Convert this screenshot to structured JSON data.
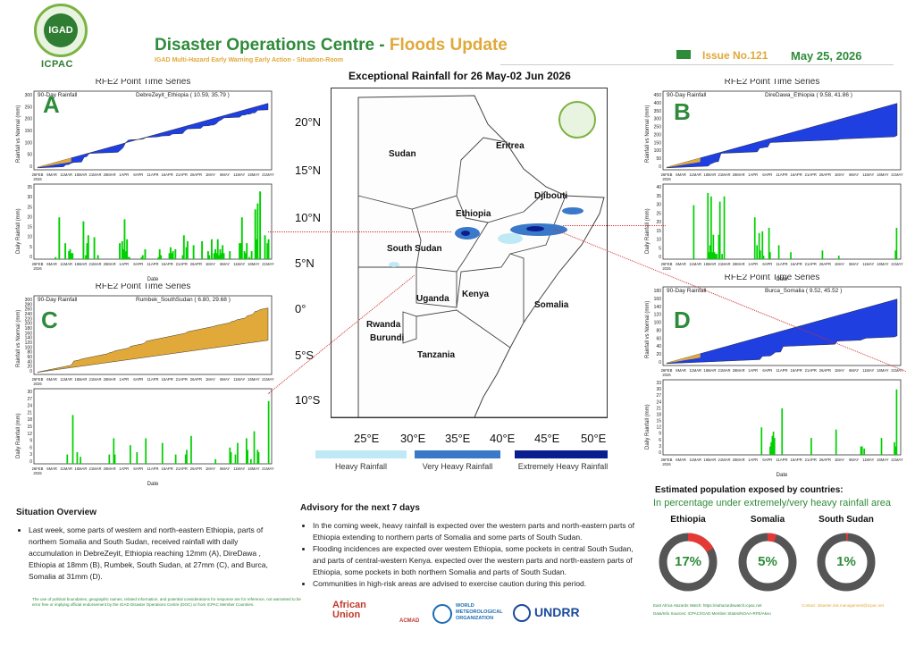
{
  "header": {
    "logo_text": "IGAD",
    "logo_sub": "ICPAC",
    "title_main": "Disaster Operations Centre - ",
    "title_accent": "Floods Update",
    "subtitle": "IGAD Multi-Hazard Early Warning Early Action - Situation-Room",
    "issue": "Issue No.121",
    "date": "May 25, 2026"
  },
  "panels": {
    "series_title": "RFE2 Point Time Series",
    "period": "90-Day Rainfall",
    "y_top_label": "Rainfall vs Normal (mm)",
    "y_bottom_label": "Daily Rainfall (mm)",
    "x_label": "Date",
    "A": {
      "letter": "A",
      "station": "DebreZeyit_Ethiopia ( 10.59, 35.79 )",
      "top_ticks": [
        "300",
        "250",
        "200",
        "150",
        "100",
        "50",
        "0"
      ],
      "bottom_ticks": [
        "35",
        "30",
        "25",
        "20",
        "15",
        "10",
        "5",
        "0"
      ]
    },
    "B": {
      "letter": "B",
      "station": "DireDawa_Ethiopia ( 9.58, 41.86 )",
      "top_ticks": [
        "450",
        "400",
        "350",
        "300",
        "250",
        "200",
        "150",
        "100",
        "50",
        "0"
      ],
      "bottom_ticks": [
        "40",
        "35",
        "30",
        "25",
        "20",
        "15",
        "10",
        "5",
        "0"
      ]
    },
    "C": {
      "letter": "C",
      "station": "Rumbek_SouthSudan ( 6.80, 29.68 )",
      "top_ticks": [
        "300",
        "280",
        "260",
        "240",
        "220",
        "200",
        "180",
        "160",
        "140",
        "120",
        "100",
        "80",
        "60",
        "40",
        "20",
        "0"
      ],
      "bottom_ticks": [
        "30",
        "27",
        "24",
        "21",
        "18",
        "15",
        "12",
        "9",
        "6",
        "3",
        "0"
      ]
    },
    "D": {
      "letter": "D",
      "station": "Burca_Somalia ( 9.52, 45.52 )",
      "top_ticks": [
        "180",
        "160",
        "140",
        "120",
        "100",
        "80",
        "60",
        "40",
        "20",
        "0"
      ],
      "bottom_ticks": [
        "33",
        "30",
        "27",
        "24",
        "21",
        "18",
        "15",
        "12",
        "9",
        "6",
        "3",
        "0"
      ]
    },
    "date_ticks": [
      "26FEB\n2026",
      "6MAR",
      "11MAR",
      "16MAR",
      "21MAR",
      "26MAR",
      "1APR",
      "6APR",
      "11APR",
      "16APR",
      "21APR",
      "26APR",
      "1MAY",
      "6MAY",
      "11MAY",
      "16MAY",
      "21MAY"
    ]
  },
  "map": {
    "title": "Exceptional Rainfall for 26 May-02 Jun 2026",
    "lat_labels": [
      "20°N",
      "15°N",
      "10°N",
      "5°N",
      "0°",
      "5°S",
      "10°S"
    ],
    "lon_labels": [
      "25°E",
      "30°E",
      "35°E",
      "40°E",
      "45°E",
      "50°E"
    ],
    "countries": [
      "Sudan",
      "Eritrea",
      "Djibouti",
      "Ethiopia",
      "South Sudan",
      "Uganda",
      "Kenya",
      "Somalia",
      "Rwanda",
      "Burundi",
      "Tanzania"
    ],
    "legend": [
      {
        "label": "Heavy Rainfall",
        "color": "#bfeaf5"
      },
      {
        "label": "Very Heavy Rainfall",
        "color": "#3a78c9"
      },
      {
        "label": "Extremely Heavy Rainfall",
        "color": "#0a1f8f"
      }
    ]
  },
  "situation": {
    "heading": "Situation Overview",
    "text": "Last week, some parts of western and north-eastern Ethiopia, parts of northern Somalia and South Sudan, received rainfall with daily accumulation in DebreZeyit, Ethiopia reaching 12mm (A), DireDawa , Ethiopia at 18mm (B), Rumbek, South Sudan, at 27mm (C), and Burca, Somalia at 31mm (D)."
  },
  "advisory": {
    "heading": "Advisory for the next 7 days",
    "items": [
      "In the coming week, heavy rainfall is expected over the western parts and north-eastern parts of Ethiopia extending to northern parts of Somalia and some parts of South Sudan.",
      "Flooding incidences are expected over western Ethiopia, some pockets in central South Sudan, and parts of central-western Kenya. expected over the western parts and north-eastern parts of Ethiopia, some pockets in both northern Somalia and parts of South Sudan.",
      "Communities in high-risk areas are advised to exercise caution during this period."
    ]
  },
  "population": {
    "title": "Estimated population exposed by countries:",
    "subtitle": "In percentage under extremely/very heavy rainfall area",
    "countries": [
      {
        "name": "Ethiopia",
        "value": "17%",
        "fraction": 0.17
      },
      {
        "name": "Somalia",
        "value": "5%",
        "fraction": 0.05
      },
      {
        "name": "South Sudan",
        "value": "1%",
        "fraction": 0.01
      }
    ]
  },
  "footer": {
    "disclaimer": "The use of political boundaries, geographic names, related information, and potential considerations for response are for reference, not warranted to be error free or implying official endorsement by the IGAD Disaster Operations Centre (DOC) or from ICPAC Member Countries.",
    "partners": [
      "African Union",
      "ACMAD",
      "WORLD METEOROLOGICAL ORGANIZATION",
      "UNDRR"
    ],
    "sources_1": "East Africa Hazards Watch: https://eahazardswatch.icpac.net",
    "sources_2": "Data/Info Sources: ICPAC/IGAD Member States/NOAA-RFE/Akvo",
    "contact": "Contact: disaster.risk.management@icpac.net"
  },
  "colors": {
    "green": "#2e8b3a",
    "gold": "#e0a93a",
    "blue_series": "#1f3fe0",
    "bar": "#00d000"
  }
}
